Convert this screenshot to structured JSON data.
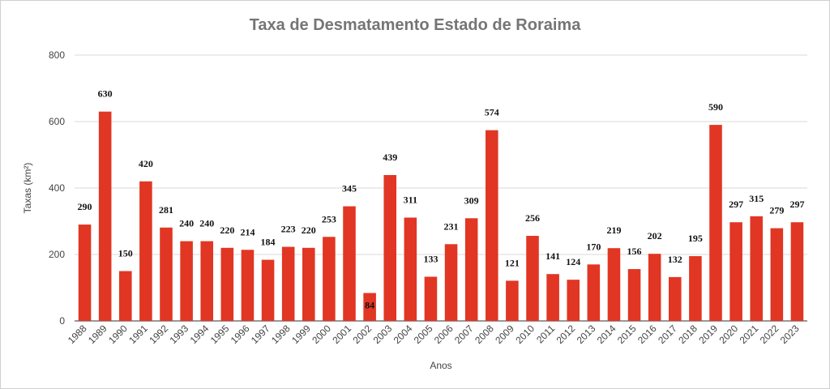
{
  "chart_data": {
    "type": "bar",
    "title": "Taxa de Desmatamento Estado de Roraima",
    "xlabel": "Anos",
    "ylabel": "Taxas (km²)",
    "ylim": [
      0,
      800
    ],
    "yticks": [
      0,
      200,
      400,
      600,
      800
    ],
    "grid": true,
    "legend": "none",
    "bar_color": "#e13623",
    "categories": [
      "1988",
      "1989",
      "1990",
      "1991",
      "1992",
      "1993",
      "1994",
      "1995",
      "1996",
      "1997",
      "1998",
      "1999",
      "2000",
      "2001",
      "2002",
      "2003",
      "2004",
      "2005",
      "2006",
      "2007",
      "2008",
      "2009",
      "2010",
      "2011",
      "2012",
      "2013",
      "2014",
      "2015",
      "2016",
      "2017",
      "2018",
      "2019",
      "2020",
      "2021",
      "2022",
      "2023"
    ],
    "values": [
      290,
      630,
      150,
      420,
      281,
      240,
      240,
      220,
      214,
      184,
      223,
      220,
      253,
      345,
      84,
      439,
      311,
      133,
      231,
      309,
      574,
      121,
      256,
      141,
      124,
      170,
      219,
      156,
      202,
      132,
      195,
      590,
      297,
      315,
      279,
      297
    ]
  }
}
